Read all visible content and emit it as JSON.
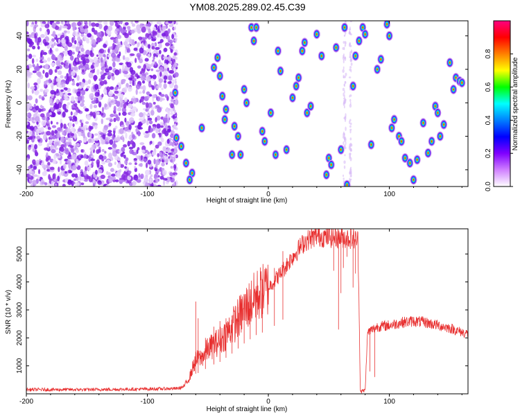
{
  "chart_data": [
    {
      "type": "heatmap",
      "title": "YM08.2025.289.02.45.C39",
      "xlabel": "Height of straight line (km)",
      "ylabel": "Frequency (Hz)",
      "xlim": [
        -200,
        165
      ],
      "ylim": [
        -50,
        49
      ],
      "xticks": [
        -200,
        -100,
        0,
        100
      ],
      "xtick_labels": [
        "-200",
        "-100",
        "0",
        "100"
      ],
      "yticks": [
        -40,
        -20,
        0,
        20,
        40
      ],
      "ytick_labels": [
        "-40",
        "-20",
        "0",
        "20",
        "40"
      ],
      "colorbar": {
        "label": "Normalized spectral amplitude",
        "range": [
          0,
          1
        ],
        "ticks": [
          0.0,
          0.2,
          0.4,
          0.6,
          0.8
        ],
        "tick_labels": [
          "0.0",
          "0.2",
          "0.4",
          "0.6",
          "0.8"
        ],
        "colors": [
          "#ff0080",
          "#ff0000",
          "#ff8000",
          "#ffff00",
          "#00ff00",
          "#00ffff",
          "#0080ff",
          "#0000ff",
          "#8000ff",
          "#d080ff",
          "#ffffff"
        ]
      },
      "noise_region": {
        "x_range": [
          -200,
          -78
        ],
        "color": "#8a2be2"
      },
      "peaks": [
        {
          "x": -77,
          "y": 6
        },
        {
          "x": -76,
          "y": -21
        },
        {
          "x": -72,
          "y": -26
        },
        {
          "x": -68,
          "y": -36
        },
        {
          "x": -63,
          "y": -42
        },
        {
          "x": -65,
          "y": -46
        },
        {
          "x": -55,
          "y": -15
        },
        {
          "x": -45,
          "y": 21
        },
        {
          "x": -42,
          "y": 27
        },
        {
          "x": -40,
          "y": 16
        },
        {
          "x": -38,
          "y": 4
        },
        {
          "x": -35,
          "y": -4
        },
        {
          "x": -36,
          "y": -10
        },
        {
          "x": -28,
          "y": -14
        },
        {
          "x": -25,
          "y": -20
        },
        {
          "x": -30,
          "y": -31
        },
        {
          "x": -23,
          "y": -31
        },
        {
          "x": -20,
          "y": 8
        },
        {
          "x": -18,
          "y": 0
        },
        {
          "x": -14,
          "y": 45
        },
        {
          "x": -12,
          "y": 37
        },
        {
          "x": -10,
          "y": 45
        },
        {
          "x": -5,
          "y": -17
        },
        {
          "x": -3,
          "y": -23
        },
        {
          "x": 2,
          "y": -6
        },
        {
          "x": 6,
          "y": -31
        },
        {
          "x": 8,
          "y": 31
        },
        {
          "x": 10,
          "y": 19
        },
        {
          "x": 15,
          "y": -28
        },
        {
          "x": 20,
          "y": 3
        },
        {
          "x": 23,
          "y": 10
        },
        {
          "x": 25,
          "y": 15
        },
        {
          "x": 28,
          "y": 31
        },
        {
          "x": 30,
          "y": 36
        },
        {
          "x": 32,
          "y": -6
        },
        {
          "x": 35,
          "y": -2
        },
        {
          "x": 40,
          "y": 41
        },
        {
          "x": 44,
          "y": 28
        },
        {
          "x": 48,
          "y": -43
        },
        {
          "x": 50,
          "y": -33
        },
        {
          "x": 52,
          "y": -37
        },
        {
          "x": 56,
          "y": 33
        },
        {
          "x": 60,
          "y": -28
        },
        {
          "x": 63,
          "y": 45
        },
        {
          "x": 65,
          "y": -49
        },
        {
          "x": 70,
          "y": 10
        },
        {
          "x": 72,
          "y": 28
        },
        {
          "x": 75,
          "y": 37
        },
        {
          "x": 78,
          "y": 45
        },
        {
          "x": 80,
          "y": 41
        },
        {
          "x": 85,
          "y": -25
        },
        {
          "x": 90,
          "y": 20
        },
        {
          "x": 93,
          "y": 26
        },
        {
          "x": 98,
          "y": 47
        },
        {
          "x": 100,
          "y": 40
        },
        {
          "x": 102,
          "y": -15
        },
        {
          "x": 104,
          "y": -10
        },
        {
          "x": 108,
          "y": -20
        },
        {
          "x": 110,
          "y": -23
        },
        {
          "x": 113,
          "y": -33
        },
        {
          "x": 117,
          "y": -36
        },
        {
          "x": 120,
          "y": -46
        },
        {
          "x": 123,
          "y": -34
        },
        {
          "x": 128,
          "y": -12
        },
        {
          "x": 132,
          "y": -30
        },
        {
          "x": 135,
          "y": -23
        },
        {
          "x": 138,
          "y": -2
        },
        {
          "x": 140,
          "y": -6
        },
        {
          "x": 142,
          "y": -20
        },
        {
          "x": 145,
          "y": -13
        },
        {
          "x": 150,
          "y": 24
        },
        {
          "x": 153,
          "y": 8
        },
        {
          "x": 155,
          "y": 15
        },
        {
          "x": 158,
          "y": 13
        },
        {
          "x": 160,
          "y": 12
        }
      ]
    },
    {
      "type": "line",
      "xlabel": "Height of straight line (km)",
      "ylabel": "SNR (10 * v/v)",
      "xlim": [
        -200,
        165
      ],
      "ylim": [
        0,
        5900
      ],
      "xticks": [
        -200,
        -100,
        0,
        100
      ],
      "xtick_labels": [
        "-200",
        "-100",
        "0",
        "100"
      ],
      "yticks": [
        1000,
        2000,
        3000,
        4000,
        5000
      ],
      "ytick_labels": [
        "1000",
        "2000",
        "3000",
        "4000",
        "5000"
      ],
      "color": "#e83030",
      "series": [
        {
          "x": [
            -200,
            -150,
            -100,
            -75,
            -70,
            -65,
            -62,
            -60,
            -55,
            -50,
            -40,
            -30,
            -20,
            -10,
            0,
            10,
            20,
            30,
            40,
            50,
            60,
            70,
            74,
            75,
            76,
            78,
            80,
            82,
            90,
            100,
            110,
            120,
            130,
            140,
            150,
            160,
            165
          ],
          "y": [
            150,
            150,
            170,
            190,
            250,
            600,
            1000,
            1200,
            1300,
            1600,
            1900,
            2400,
            3000,
            3500,
            3800,
            4300,
            4900,
            5450,
            5650,
            5600,
            5600,
            5550,
            5500,
            3000,
            100,
            100,
            120,
            2200,
            2400,
            2450,
            2550,
            2600,
            2550,
            2450,
            2350,
            2200,
            2150
          ]
        }
      ],
      "spikes": [
        {
          "x": -60,
          "y": 3300
        },
        {
          "x": -58,
          "y": 2700
        },
        {
          "x": -52,
          "y": 2000
        },
        {
          "x": -45,
          "y": 2400
        },
        {
          "x": -40,
          "y": 2600
        },
        {
          "x": -35,
          "y": 2700
        },
        {
          "x": -30,
          "y": 2800
        },
        {
          "x": -25,
          "y": 3100
        },
        {
          "x": -20,
          "y": 3300
        },
        {
          "x": -15,
          "y": 3500
        },
        {
          "x": -10,
          "y": 3700
        },
        {
          "x": -5,
          "y": 4100
        },
        {
          "x": 5,
          "y": 4500
        },
        {
          "x": 12,
          "y": 5100
        }
      ],
      "dips": [
        {
          "x": 54,
          "y": 4400
        },
        {
          "x": 58,
          "y": 2300
        },
        {
          "x": 60,
          "y": 3600
        },
        {
          "x": 62,
          "y": 4500
        },
        {
          "x": 65,
          "y": 4900
        },
        {
          "x": 70,
          "y": 3800
        },
        {
          "x": 72,
          "y": 4300
        },
        {
          "x": 84,
          "y": 800
        },
        {
          "x": 88,
          "y": 600
        }
      ]
    }
  ]
}
